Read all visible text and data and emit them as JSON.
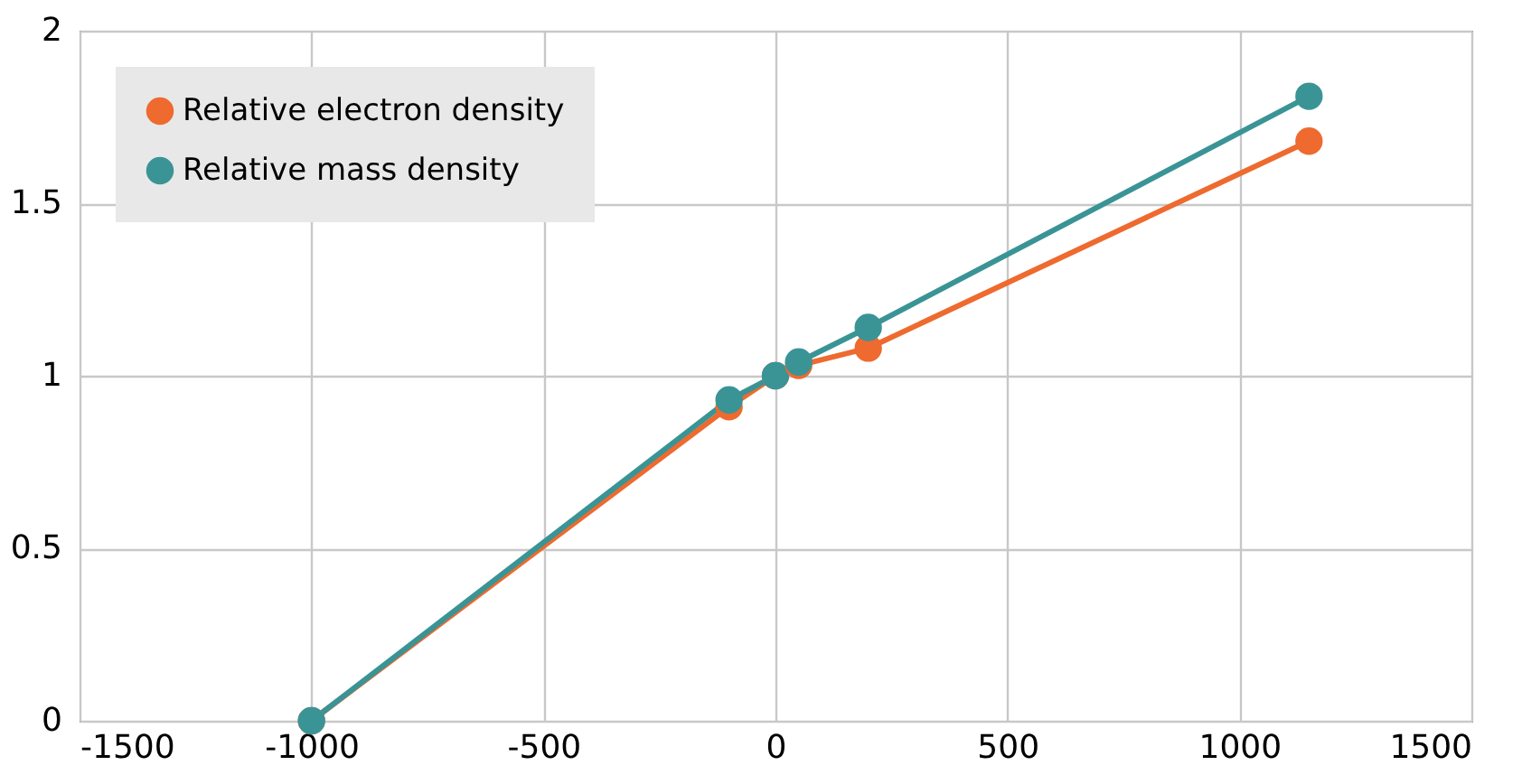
{
  "chart_data": {
    "type": "line",
    "x": [
      -1000,
      -100,
      0,
      50,
      200,
      1150
    ],
    "series": [
      {
        "name": "Relative electron density",
        "color": "#ee6a2e",
        "values": [
          0,
          0.91,
          1,
          1.03,
          1.08,
          1.68
        ]
      },
      {
        "name": "Relative mass density",
        "color": "#3a9496",
        "values": [
          0,
          0.93,
          1,
          1.04,
          1.14,
          1.81
        ]
      }
    ],
    "xlim": [
      -1500,
      1500
    ],
    "xticks": [
      -1500,
      -1000,
      -500,
      0,
      500,
      1000,
      1500
    ],
    "ylim": [
      0,
      2
    ],
    "yticks": [
      0,
      0.5,
      1,
      1.5,
      2
    ],
    "grid": true,
    "legend": "top left",
    "marker": "circle",
    "line_style": "solid"
  }
}
